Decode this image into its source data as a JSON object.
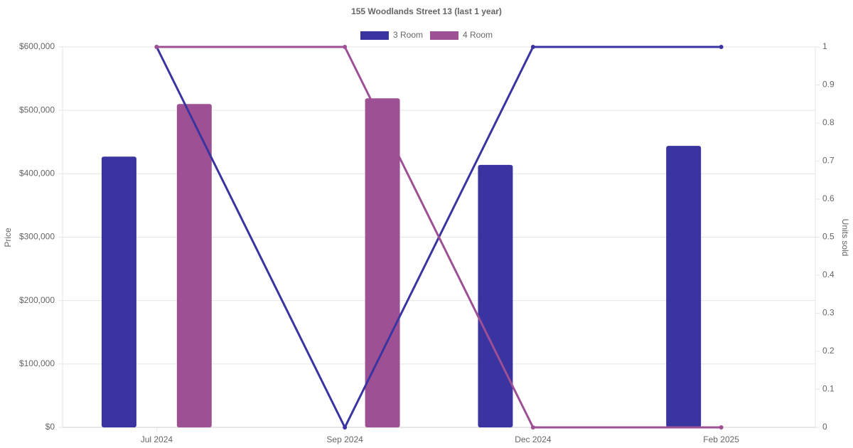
{
  "chart_data": {
    "type": "bar-line",
    "title": "155 Woodlands Street 13 (last 1 year)",
    "y_label": "Price",
    "y2_label": "Units sold",
    "categories": [
      "Jul 2024",
      "Sep 2024",
      "Dec 2024",
      "Feb 2025"
    ],
    "series": [
      {
        "name": "3 Room",
        "color": "#3a34a0",
        "values": [
          427000,
          null,
          414000,
          444000
        ],
        "y2_values": [
          1,
          0,
          1,
          1
        ]
      },
      {
        "name": "4 Room",
        "color": "#9e5094",
        "values": [
          510000,
          519000,
          null,
          null
        ],
        "y2_values": [
          1,
          1,
          0,
          0
        ]
      }
    ],
    "ylim": [
      0,
      600000
    ],
    "yticks": [
      {
        "value": 0,
        "label": "$0"
      },
      {
        "value": 100000,
        "label": "$100,000"
      },
      {
        "value": 200000,
        "label": "$200,000"
      },
      {
        "value": 300000,
        "label": "$300,000"
      },
      {
        "value": 400000,
        "label": "$400,000"
      },
      {
        "value": 500000,
        "label": "$500,000"
      },
      {
        "value": 600000,
        "label": "$600,000"
      }
    ],
    "y2lim": [
      0,
      1
    ],
    "y2ticks": [
      0,
      0.1,
      0.2,
      0.3,
      0.4,
      0.5,
      0.6,
      0.7,
      0.8,
      0.9,
      1
    ],
    "grid": true,
    "legend": "top"
  }
}
